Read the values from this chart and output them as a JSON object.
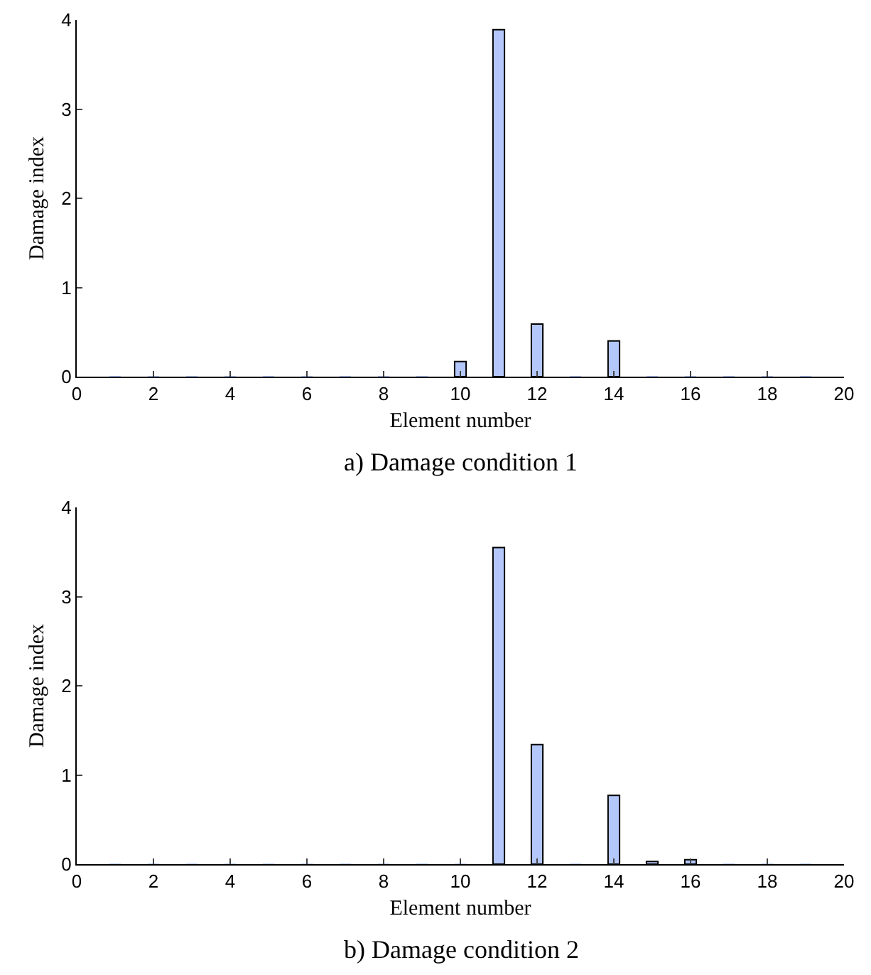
{
  "chart_data": [
    {
      "type": "bar",
      "title": "a) Damage condition 1",
      "xlabel": "Element number",
      "ylabel": "Damage index",
      "x": [
        1,
        2,
        3,
        4,
        5,
        6,
        7,
        8,
        9,
        10,
        11,
        12,
        13,
        14,
        15,
        16,
        17,
        18,
        19
      ],
      "values": [
        0,
        0,
        0,
        0,
        0,
        0,
        0,
        0,
        0,
        0.17,
        3.89,
        0.59,
        0,
        0.4,
        0,
        0,
        0,
        0,
        0
      ],
      "color": "#b3c7fa",
      "xlim": [
        0,
        20
      ],
      "xticks": [
        0,
        2,
        4,
        6,
        8,
        10,
        12,
        14,
        16,
        18,
        20
      ],
      "ylim": [
        0,
        4
      ],
      "yticks": [
        0,
        1,
        2,
        3,
        4
      ]
    },
    {
      "type": "bar",
      "title": "b) Damage condition 2",
      "xlabel": "Element number",
      "ylabel": "Damage index",
      "x": [
        1,
        2,
        3,
        4,
        5,
        6,
        7,
        8,
        9,
        10,
        11,
        12,
        13,
        14,
        15,
        16,
        17,
        18,
        19
      ],
      "values": [
        0,
        0,
        0,
        0,
        0,
        0,
        0,
        0,
        0,
        0,
        3.55,
        1.34,
        0,
        0.77,
        0.03,
        0.05,
        0,
        0,
        0
      ],
      "color": "#b3c7fa",
      "xlim": [
        0,
        20
      ],
      "xticks": [
        0,
        2,
        4,
        6,
        8,
        10,
        12,
        14,
        16,
        18,
        20
      ],
      "ylim": [
        0,
        4
      ],
      "yticks": [
        0,
        1,
        2,
        3,
        4
      ]
    }
  ]
}
